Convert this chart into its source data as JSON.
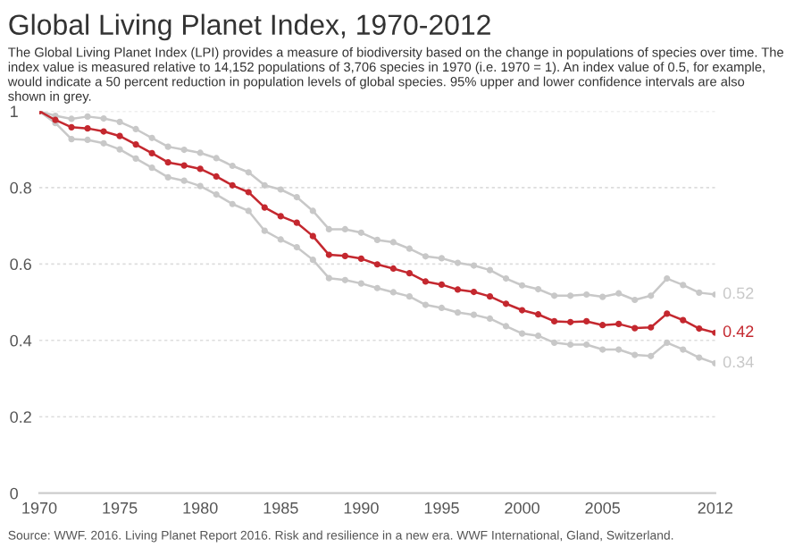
{
  "chart_data": {
    "type": "line",
    "title": "Global Living Planet Index, 1970-2012",
    "subtitle": "The Global Living Planet Index (LPI) provides a measure of biodiversity based on the change in populations of species over time. The index value is measured relative to 14,152 populations of 3,706 species in 1970 (i.e. 1970 = 1). An index value of 0.5, for example, would indicate a 50 percent reduction in population levels of global species. 95% upper and lower confidence intervals are also shown in grey.",
    "x": [
      1970,
      1971,
      1972,
      1973,
      1974,
      1975,
      1976,
      1977,
      1978,
      1979,
      1980,
      1981,
      1982,
      1983,
      1984,
      1985,
      1986,
      1987,
      1988,
      1989,
      1990,
      1991,
      1992,
      1993,
      1994,
      1995,
      1996,
      1997,
      1998,
      1999,
      2000,
      2001,
      2002,
      2003,
      2004,
      2005,
      2006,
      2007,
      2008,
      2009,
      2010,
      2011,
      2012
    ],
    "series": [
      {
        "color": "#c8c8c8",
        "values": [
          1.0,
          0.988,
          0.98,
          0.986,
          0.981,
          0.972,
          0.953,
          0.93,
          0.907,
          0.899,
          0.891,
          0.877,
          0.857,
          0.84,
          0.806,
          0.795,
          0.775,
          0.739,
          0.691,
          0.691,
          0.682,
          0.663,
          0.657,
          0.64,
          0.62,
          0.615,
          0.603,
          0.596,
          0.584,
          0.562,
          0.544,
          0.534,
          0.517,
          0.517,
          0.52,
          0.514,
          0.523,
          0.506,
          0.517,
          0.562,
          0.545,
          0.525,
          0.52
        ],
        "value_labels": [
          null,
          null,
          null,
          null,
          null,
          null,
          null,
          null,
          null,
          null,
          null,
          null,
          null,
          null,
          null,
          null,
          null,
          null,
          null,
          null,
          null,
          null,
          null,
          null,
          null,
          null,
          null,
          null,
          null,
          null,
          null,
          null,
          null,
          null,
          null,
          null,
          null,
          null,
          null,
          null,
          null,
          null,
          "0.52"
        ]
      },
      {
        "color": "#c8c8c8",
        "values": [
          1.0,
          0.969,
          0.927,
          0.925,
          0.916,
          0.9,
          0.876,
          0.852,
          0.827,
          0.818,
          0.804,
          0.782,
          0.757,
          0.739,
          0.687,
          0.664,
          0.644,
          0.611,
          0.563,
          0.558,
          0.549,
          0.537,
          0.526,
          0.515,
          0.493,
          0.485,
          0.473,
          0.467,
          0.457,
          0.437,
          0.418,
          0.412,
          0.394,
          0.389,
          0.389,
          0.376,
          0.376,
          0.362,
          0.359,
          0.394,
          0.376,
          0.355,
          0.34
        ],
        "value_labels": [
          null,
          null,
          null,
          null,
          null,
          null,
          null,
          null,
          null,
          null,
          null,
          null,
          null,
          null,
          null,
          null,
          null,
          null,
          null,
          null,
          null,
          null,
          null,
          null,
          null,
          null,
          null,
          null,
          null,
          null,
          null,
          null,
          null,
          null,
          null,
          null,
          null,
          null,
          null,
          null,
          null,
          null,
          "0.34"
        ]
      },
      {
        "color": "#c4282f",
        "values": [
          1.0,
          0.977,
          0.958,
          0.955,
          0.947,
          0.935,
          0.913,
          0.89,
          0.866,
          0.858,
          0.849,
          0.829,
          0.806,
          0.788,
          0.748,
          0.725,
          0.708,
          0.673,
          0.624,
          0.621,
          0.614,
          0.599,
          0.588,
          0.576,
          0.554,
          0.546,
          0.533,
          0.527,
          0.515,
          0.496,
          0.479,
          0.468,
          0.45,
          0.448,
          0.45,
          0.44,
          0.443,
          0.432,
          0.434,
          0.47,
          0.453,
          0.431,
          0.42
        ],
        "value_labels": [
          null,
          null,
          null,
          null,
          null,
          null,
          null,
          null,
          null,
          null,
          null,
          null,
          null,
          null,
          null,
          null,
          null,
          null,
          null,
          null,
          null,
          null,
          null,
          null,
          null,
          null,
          null,
          null,
          null,
          null,
          null,
          null,
          null,
          null,
          null,
          null,
          null,
          null,
          null,
          null,
          null,
          null,
          "0.42"
        ]
      }
    ],
    "annotations": [
      "Source: WWF. 2016. Living Planet Report 2016. Risk and resilience in a new era. WWF International, Gland, Switzerland."
    ],
    "xlim": [
      1970,
      2012
    ],
    "xticks": [
      1970,
      1975,
      1980,
      1985,
      1990,
      1995,
      2000,
      2005,
      2012
    ],
    "ylim": [
      0,
      1
    ],
    "yticks": [
      0,
      0.2,
      0.4,
      0.6,
      0.8,
      1
    ],
    "grid": "y",
    "marker": "circle",
    "line_style": "solid"
  }
}
